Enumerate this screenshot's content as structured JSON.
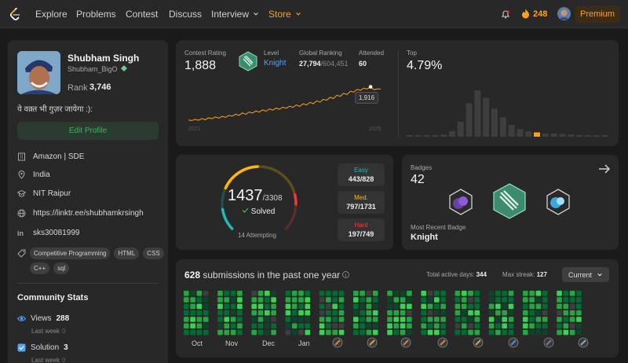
{
  "nav": {
    "links": [
      {
        "label": "Explore"
      },
      {
        "label": "Problems"
      },
      {
        "label": "Contest"
      },
      {
        "label": "Discuss"
      },
      {
        "label": "Interview"
      },
      {
        "label": "Store"
      }
    ],
    "streak": "248",
    "premium": "Premium"
  },
  "profile": {
    "name": "Shubham Singh",
    "username": "Shubham_BigO",
    "rank_label": "Rank",
    "rank": "3,746",
    "bio": "ये वक़्त भी गुज़र जायेगा :):",
    "edit_button": "Edit Profile",
    "company": "Amazon | SDE",
    "country": "India",
    "school": "NIT Raipur",
    "website": "https://linktr.ee/shubhamkrsingh",
    "linkedin": "sks30081999",
    "skills": [
      "Competitive Programming",
      "HTML",
      "CSS",
      "C++",
      "sql"
    ]
  },
  "community": {
    "title": "Community Stats",
    "views_label": "Views",
    "views": "288",
    "views_last_label": "Last week",
    "views_last": "0",
    "solution_label": "Solution",
    "solution": "3",
    "solution_last_label": "Last week",
    "solution_last": "0"
  },
  "contest": {
    "rating_label": "Contest Rating",
    "rating": "1,888",
    "level_label": "Level",
    "level": "Knight",
    "global_label": "Global Ranking",
    "global_rank": "27,794",
    "global_total": "/604,451",
    "attended_label": "Attended",
    "attended": "60",
    "top_label": "Top",
    "top": "4.79%",
    "year_start": "2021",
    "year_end": "2025",
    "tooltip": "1,916",
    "rating_history": [
      1502,
      1495,
      1510,
      1498,
      1520,
      1505,
      1530,
      1518,
      1540,
      1525,
      1548,
      1535,
      1560,
      1550,
      1575,
      1560,
      1590,
      1572,
      1602,
      1588,
      1615,
      1600,
      1628,
      1612,
      1640,
      1625,
      1650,
      1636,
      1662,
      1648,
      1675,
      1660,
      1690,
      1672,
      1705,
      1688,
      1722,
      1705,
      1740,
      1725,
      1760,
      1748,
      1785,
      1770,
      1810,
      1798,
      1835,
      1820,
      1860,
      1850,
      1885,
      1872,
      1900,
      1888,
      1916,
      1880,
      1890,
      1888
    ],
    "distribution": [
      2,
      2,
      2,
      3,
      4,
      10,
      28,
      62,
      86,
      72,
      52,
      36,
      22,
      14,
      10,
      8,
      6,
      6,
      5,
      4,
      3,
      3,
      2,
      2
    ]
  },
  "solved": {
    "count": "1437",
    "total": "/3308",
    "solved_label": "Solved",
    "attempting": "14 Attempting",
    "easy_label": "Easy",
    "easy": "443/828",
    "medium_label": "Med.",
    "medium": "797/1731",
    "hard_label": "Hard",
    "hard": "197/749",
    "colors": {
      "easy": "#1cbaba",
      "medium": "#ffb700",
      "hard": "#f63737"
    }
  },
  "badges": {
    "label": "Badges",
    "count": "42",
    "recent_label": "Most Recent Badge",
    "recent": "Knight"
  },
  "submissions": {
    "count": "628",
    "text": "submissions in the past one year",
    "active_label": "Total active days:",
    "active": "344",
    "streak_label": "Max streak:",
    "streak": "127",
    "range": "Current",
    "months": [
      "Oct",
      "Nov",
      "Dec",
      "Jan"
    ]
  }
}
